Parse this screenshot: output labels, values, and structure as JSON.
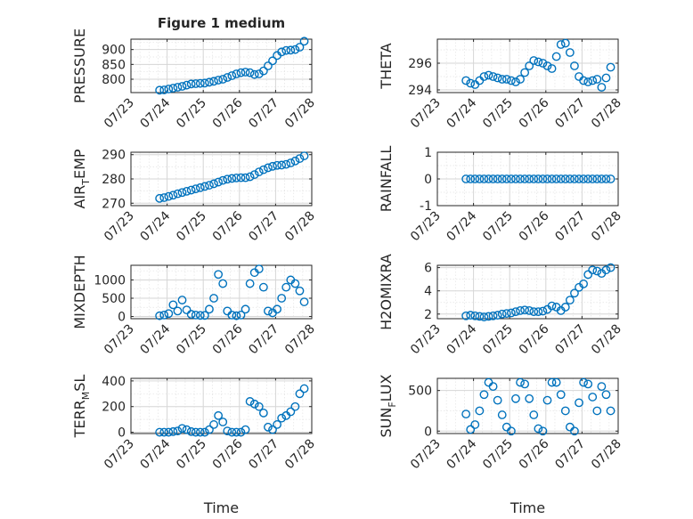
{
  "figure_title": "Figure 1 medium",
  "chart_data": [
    {
      "type": "scatter",
      "title": "Figure 1 medium",
      "ylabel": "PRESSURE",
      "xlabel": "",
      "xlim": [
        "07/23",
        "07/28"
      ],
      "ylim": [
        755,
        935
      ],
      "yticks": [
        800,
        850,
        900
      ],
      "ytick_labels": [
        "800",
        "850",
        "900"
      ],
      "xtick_labels": [
        "07/23",
        "07/24",
        "07/25",
        "07/26",
        "07/27",
        "07/28"
      ],
      "grid": true,
      "series": [
        {
          "x": [
            "07/23 19:00",
            "07/23 22:00",
            "07/24 01:00",
            "07/24 04:00",
            "07/24 07:00",
            "07/24 10:00",
            "07/24 13:00",
            "07/24 16:00",
            "07/24 19:00",
            "07/24 22:00",
            "07/25 01:00",
            "07/25 04:00",
            "07/25 07:00",
            "07/25 10:00",
            "07/25 13:00",
            "07/25 16:00",
            "07/25 19:00",
            "07/25 22:00",
            "07/26 01:00",
            "07/26 04:00",
            "07/26 07:00",
            "07/26 10:00",
            "07/26 13:00",
            "07/26 16:00",
            "07/26 19:00",
            "07/26 22:00",
            "07/27 01:00",
            "07/27 04:00",
            "07/27 07:00",
            "07/27 10:00",
            "07/27 13:00",
            "07/27 16:00",
            "07/27 19:00"
          ],
          "y": [
            763,
            764,
            767,
            770,
            773,
            776,
            780,
            784,
            785,
            786,
            787,
            790,
            793,
            797,
            800,
            806,
            812,
            818,
            822,
            824,
            822,
            816,
            818,
            828,
            845,
            862,
            880,
            892,
            897,
            898,
            900,
            908,
            928
          ]
        }
      ]
    },
    {
      "type": "scatter",
      "title": "",
      "ylabel": "THETA",
      "xlabel": "",
      "xlim": [
        "07/23",
        "07/28"
      ],
      "ylim": [
        293.8,
        297.8
      ],
      "yticks": [
        294,
        296
      ],
      "ytick_labels": [
        "294",
        "296"
      ],
      "xtick_labels": [
        "07/23",
        "07/24",
        "07/25",
        "07/26",
        "07/27",
        "07/28"
      ],
      "grid": true,
      "series": [
        {
          "x": [
            "07/23 19:00",
            "07/23 22:00",
            "07/24 01:00",
            "07/24 04:00",
            "07/24 07:00",
            "07/24 10:00",
            "07/24 13:00",
            "07/24 16:00",
            "07/24 19:00",
            "07/24 22:00",
            "07/25 01:00",
            "07/25 04:00",
            "07/25 07:00",
            "07/25 10:00",
            "07/25 13:00",
            "07/25 16:00",
            "07/25 19:00",
            "07/25 22:00",
            "07/26 01:00",
            "07/26 04:00",
            "07/26 07:00",
            "07/26 10:00",
            "07/26 13:00",
            "07/26 16:00",
            "07/26 19:00",
            "07/26 22:00",
            "07/27 01:00",
            "07/27 04:00",
            "07/27 07:00",
            "07/27 10:00",
            "07/27 13:00",
            "07/27 16:00",
            "07/27 19:00"
          ],
          "y": [
            294.7,
            294.5,
            294.4,
            294.7,
            295.0,
            295.1,
            295.0,
            294.9,
            294.8,
            294.8,
            294.7,
            294.6,
            294.8,
            295.3,
            295.8,
            296.2,
            296.1,
            296.0,
            295.8,
            295.6,
            296.5,
            297.4,
            297.5,
            296.8,
            295.8,
            295.0,
            294.7,
            294.6,
            294.7,
            294.8,
            294.2,
            294.9,
            295.7
          ]
        }
      ]
    },
    {
      "type": "scatter",
      "title": "",
      "ylabel": "AIR_TEMP",
      "xlabel": "",
      "xlim": [
        "07/23",
        "07/28"
      ],
      "ylim": [
        269,
        291
      ],
      "yticks": [
        270,
        280,
        290
      ],
      "ytick_labels": [
        "270",
        "280",
        "290"
      ],
      "xtick_labels": [
        "07/23",
        "07/24",
        "07/25",
        "07/26",
        "07/27",
        "07/28"
      ],
      "grid": true,
      "series": [
        {
          "x": [
            "07/23 19:00",
            "07/23 22:00",
            "07/24 01:00",
            "07/24 04:00",
            "07/24 07:00",
            "07/24 10:00",
            "07/24 13:00",
            "07/24 16:00",
            "07/24 19:00",
            "07/24 22:00",
            "07/25 01:00",
            "07/25 04:00",
            "07/25 07:00",
            "07/25 10:00",
            "07/25 13:00",
            "07/25 16:00",
            "07/25 19:00",
            "07/25 22:00",
            "07/26 01:00",
            "07/26 04:00",
            "07/26 07:00",
            "07/26 10:00",
            "07/26 13:00",
            "07/26 16:00",
            "07/26 19:00",
            "07/26 22:00",
            "07/27 01:00",
            "07/27 04:00",
            "07/27 07:00",
            "07/27 10:00",
            "07/27 13:00",
            "07/27 16:00",
            "07/27 19:00"
          ],
          "y": [
            272.0,
            272.3,
            272.8,
            273.3,
            273.9,
            274.4,
            274.9,
            275.4,
            275.9,
            276.4,
            276.9,
            277.4,
            278.0,
            278.7,
            279.4,
            279.9,
            280.2,
            280.4,
            280.5,
            280.5,
            280.9,
            281.8,
            282.9,
            283.8,
            284.6,
            285.2,
            285.6,
            285.7,
            286.0,
            286.6,
            287.4,
            288.4,
            289.5
          ]
        }
      ]
    },
    {
      "type": "scatter",
      "title": "",
      "ylabel": "RAINFALL",
      "xlabel": "",
      "xlim": [
        "07/23",
        "07/28"
      ],
      "ylim": [
        -1,
        1
      ],
      "yticks": [
        -1,
        0,
        1
      ],
      "ytick_labels": [
        "-1",
        "0",
        "1"
      ],
      "xtick_labels": [
        "07/23",
        "07/24",
        "07/25",
        "07/26",
        "07/27",
        "07/28"
      ],
      "grid": true,
      "series": [
        {
          "x": [
            "07/23 19:00",
            "07/23 22:00",
            "07/24 01:00",
            "07/24 04:00",
            "07/24 07:00",
            "07/24 10:00",
            "07/24 13:00",
            "07/24 16:00",
            "07/24 19:00",
            "07/24 22:00",
            "07/25 01:00",
            "07/25 04:00",
            "07/25 07:00",
            "07/25 10:00",
            "07/25 13:00",
            "07/25 16:00",
            "07/25 19:00",
            "07/25 22:00",
            "07/26 01:00",
            "07/26 04:00",
            "07/26 07:00",
            "07/26 10:00",
            "07/26 13:00",
            "07/26 16:00",
            "07/26 19:00",
            "07/26 22:00",
            "07/27 01:00",
            "07/27 04:00",
            "07/27 07:00",
            "07/27 10:00",
            "07/27 13:00",
            "07/27 16:00",
            "07/27 19:00"
          ],
          "y": [
            0,
            0,
            0,
            0,
            0,
            0,
            0,
            0,
            0,
            0,
            0,
            0,
            0,
            0,
            0,
            0,
            0,
            0,
            0,
            0,
            0,
            0,
            0,
            0,
            0,
            0,
            0,
            0,
            0,
            0,
            0,
            0,
            0
          ]
        }
      ]
    },
    {
      "type": "scatter",
      "title": "",
      "ylabel": "MIXDEPTH",
      "xlabel": "",
      "xlim": [
        "07/23",
        "07/28"
      ],
      "ylim": [
        -60,
        1400
      ],
      "yticks": [
        0,
        500,
        1000
      ],
      "ytick_labels": [
        "0",
        "500",
        "1000"
      ],
      "xtick_labels": [
        "07/23",
        "07/24",
        "07/25",
        "07/26",
        "07/27",
        "07/28"
      ],
      "grid": true,
      "series": [
        {
          "x": [
            "07/23 19:00",
            "07/23 22:00",
            "07/24 01:00",
            "07/24 04:00",
            "07/24 07:00",
            "07/24 10:00",
            "07/24 13:00",
            "07/24 16:00",
            "07/24 19:00",
            "07/24 22:00",
            "07/25 01:00",
            "07/25 04:00",
            "07/25 07:00",
            "07/25 10:00",
            "07/25 13:00",
            "07/25 16:00",
            "07/25 19:00",
            "07/25 22:00",
            "07/26 01:00",
            "07/26 04:00",
            "07/26 07:00",
            "07/26 10:00",
            "07/26 13:00",
            "07/26 16:00",
            "07/26 19:00",
            "07/26 22:00",
            "07/27 01:00",
            "07/27 04:00",
            "07/27 07:00",
            "07/27 10:00",
            "07/27 13:00",
            "07/27 16:00",
            "07/27 19:00"
          ],
          "y": [
            20,
            40,
            80,
            320,
            150,
            450,
            180,
            60,
            40,
            30,
            30,
            200,
            500,
            1150,
            900,
            150,
            40,
            20,
            40,
            200,
            900,
            1200,
            1300,
            800,
            150,
            100,
            200,
            500,
            800,
            1000,
            900,
            700,
            400
          ]
        }
      ]
    },
    {
      "type": "scatter",
      "title": "",
      "ylabel": "H2OMIXRA",
      "xlabel": "",
      "xlim": [
        "07/23",
        "07/28"
      ],
      "ylim": [
        1.6,
        6.2
      ],
      "yticks": [
        2,
        4,
        6
      ],
      "ytick_labels": [
        "2",
        "4",
        "6"
      ],
      "xtick_labels": [
        "07/23",
        "07/24",
        "07/25",
        "07/26",
        "07/27",
        "07/28"
      ],
      "grid": true,
      "series": [
        {
          "x": [
            "07/23 19:00",
            "07/23 22:00",
            "07/24 01:00",
            "07/24 04:00",
            "07/24 07:00",
            "07/24 10:00",
            "07/24 13:00",
            "07/24 16:00",
            "07/24 19:00",
            "07/24 22:00",
            "07/25 01:00",
            "07/25 04:00",
            "07/25 07:00",
            "07/25 10:00",
            "07/25 13:00",
            "07/25 16:00",
            "07/25 19:00",
            "07/25 22:00",
            "07/26 01:00",
            "07/26 04:00",
            "07/26 07:00",
            "07/26 10:00",
            "07/26 13:00",
            "07/26 16:00",
            "07/26 19:00",
            "07/26 22:00",
            "07/27 01:00",
            "07/27 04:00",
            "07/27 07:00",
            "07/27 10:00",
            "07/27 13:00",
            "07/27 16:00",
            "07/27 19:00"
          ],
          "y": [
            1.85,
            1.9,
            1.85,
            1.8,
            1.75,
            1.8,
            1.85,
            1.9,
            2.0,
            2.05,
            2.1,
            2.2,
            2.3,
            2.35,
            2.3,
            2.2,
            2.2,
            2.25,
            2.4,
            2.7,
            2.6,
            2.3,
            2.6,
            3.2,
            3.8,
            4.3,
            4.6,
            5.4,
            5.8,
            5.7,
            5.5,
            5.8,
            6.0
          ]
        }
      ]
    },
    {
      "type": "scatter",
      "title": "",
      "ylabel": "TERR_MSL",
      "xlabel": "Time",
      "xlim": [
        "07/23",
        "07/28"
      ],
      "ylim": [
        -10,
        420
      ],
      "yticks": [
        0,
        200,
        400
      ],
      "ytick_labels": [
        "0",
        "200",
        "400"
      ],
      "xtick_labels": [
        "07/23",
        "07/24",
        "07/25",
        "07/26",
        "07/27",
        "07/28"
      ],
      "grid": true,
      "series": [
        {
          "x": [
            "07/23 19:00",
            "07/23 22:00",
            "07/24 01:00",
            "07/24 04:00",
            "07/24 07:00",
            "07/24 10:00",
            "07/24 13:00",
            "07/24 16:00",
            "07/24 19:00",
            "07/24 22:00",
            "07/25 01:00",
            "07/25 04:00",
            "07/25 07:00",
            "07/25 10:00",
            "07/25 13:00",
            "07/25 16:00",
            "07/25 19:00",
            "07/25 22:00",
            "07/26 01:00",
            "07/26 04:00",
            "07/26 07:00",
            "07/26 10:00",
            "07/26 13:00",
            "07/26 16:00",
            "07/26 19:00",
            "07/26 22:00",
            "07/27 01:00",
            "07/27 04:00",
            "07/27 07:00",
            "07/27 10:00",
            "07/27 13:00",
            "07/27 16:00",
            "07/27 19:00"
          ],
          "y": [
            0,
            0,
            0,
            5,
            10,
            30,
            20,
            5,
            0,
            0,
            0,
            20,
            60,
            130,
            80,
            10,
            0,
            0,
            0,
            20,
            240,
            220,
            200,
            150,
            40,
            20,
            60,
            110,
            130,
            160,
            200,
            300,
            340
          ]
        }
      ]
    },
    {
      "type": "scatter",
      "title": "",
      "ylabel": "SUN_FLUX",
      "xlabel": "Time",
      "xlim": [
        "07/23",
        "07/28"
      ],
      "ylim": [
        -30,
        650
      ],
      "yticks": [
        0,
        500
      ],
      "ytick_labels": [
        "0",
        "500"
      ],
      "xtick_labels": [
        "07/23",
        "07/24",
        "07/25",
        "07/26",
        "07/27",
        "07/28"
      ],
      "grid": true,
      "series": [
        {
          "x": [
            "07/23 19:00",
            "07/23 22:00",
            "07/24 01:00",
            "07/24 04:00",
            "07/24 07:00",
            "07/24 10:00",
            "07/24 13:00",
            "07/24 16:00",
            "07/24 19:00",
            "07/24 22:00",
            "07/25 01:00",
            "07/25 04:00",
            "07/25 07:00",
            "07/25 10:00",
            "07/25 13:00",
            "07/25 16:00",
            "07/25 19:00",
            "07/25 22:00",
            "07/26 01:00",
            "07/26 04:00",
            "07/26 07:00",
            "07/26 10:00",
            "07/26 13:00",
            "07/26 16:00",
            "07/26 19:00",
            "07/26 22:00",
            "07/27 01:00",
            "07/27 04:00",
            "07/27 07:00",
            "07/27 10:00",
            "07/27 13:00",
            "07/27 16:00",
            "07/27 19:00"
          ],
          "y": [
            210,
            20,
            80,
            250,
            450,
            600,
            550,
            380,
            200,
            50,
            0,
            400,
            600,
            580,
            400,
            200,
            30,
            0,
            380,
            600,
            600,
            450,
            250,
            50,
            0,
            350,
            600,
            580,
            420,
            250,
            550,
            450,
            250
          ]
        }
      ]
    }
  ]
}
